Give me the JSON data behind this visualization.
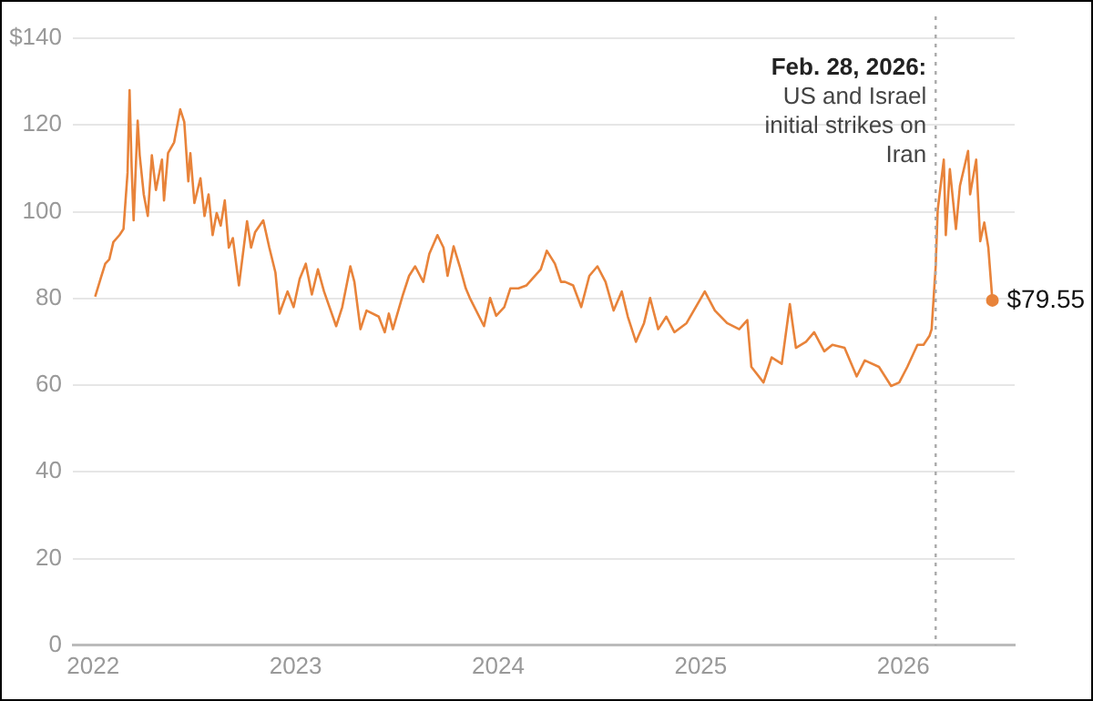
{
  "chart_data": {
    "type": "line",
    "x": [
      2022.01,
      2022.04,
      2022.06,
      2022.08,
      2022.1,
      2022.13,
      2022.15,
      2022.17,
      2022.18,
      2022.19,
      2022.2,
      2022.22,
      2022.23,
      2022.25,
      2022.27,
      2022.29,
      2022.31,
      2022.34,
      2022.35,
      2022.37,
      2022.4,
      2022.43,
      2022.45,
      2022.47,
      2022.48,
      2022.5,
      2022.53,
      2022.55,
      2022.57,
      2022.59,
      2022.61,
      2022.63,
      2022.65,
      2022.67,
      2022.69,
      2022.72,
      2022.76,
      2022.78,
      2022.8,
      2022.84,
      2022.87,
      2022.9,
      2022.92,
      2022.96,
      2022.99,
      2023.02,
      2023.05,
      2023.08,
      2023.11,
      2023.14,
      2023.2,
      2023.23,
      2023.27,
      2023.29,
      2023.32,
      2023.35,
      2023.41,
      2023.44,
      2023.46,
      2023.48,
      2023.53,
      2023.56,
      2023.59,
      2023.63,
      2023.66,
      2023.7,
      2023.73,
      2023.75,
      2023.78,
      2023.81,
      2023.84,
      2023.86,
      2023.93,
      2023.96,
      2023.99,
      2024.03,
      2024.06,
      2024.1,
      2024.14,
      2024.21,
      2024.24,
      2024.28,
      2024.31,
      2024.33,
      2024.37,
      2024.41,
      2024.45,
      2024.49,
      2024.53,
      2024.57,
      2024.61,
      2024.64,
      2024.68,
      2024.72,
      2024.75,
      2024.79,
      2024.83,
      2024.87,
      2024.93,
      2025.02,
      2025.07,
      2025.13,
      2025.19,
      2025.23,
      2025.25,
      2025.31,
      2025.35,
      2025.4,
      2025.44,
      2025.47,
      2025.52,
      2025.56,
      2025.61,
      2025.65,
      2025.71,
      2025.77,
      2025.81,
      2025.88,
      2025.94,
      2025.98,
      2026.02,
      2026.07,
      2026.1,
      2026.13,
      2026.14,
      2026.16,
      2026.17,
      2026.2,
      2026.21,
      2026.23,
      2026.26,
      2026.28,
      2026.32,
      2026.33,
      2026.36,
      2026.38,
      2026.4,
      2026.42,
      2026.44
    ],
    "series": [
      {
        "color": "#e8833a",
        "values": [
          80.4,
          85,
          88,
          89,
          93,
          94.6,
          96,
          109,
          128,
          110.5,
          98,
          121,
          113,
          104,
          99,
          113,
          105,
          112,
          102.6,
          113.5,
          116,
          123.6,
          120.7,
          107,
          113.5,
          102,
          107.7,
          99,
          104,
          94.6,
          99.7,
          96.8,
          102.6,
          91.7,
          93.9,
          83,
          97.8,
          91.7,
          95.3,
          98,
          91.7,
          86,
          76.5,
          81.6,
          78,
          84.5,
          88,
          80.9,
          86.7,
          81.6,
          73.6,
          78,
          87.4,
          83.8,
          72.9,
          77.2,
          75.8,
          72.2,
          76.5,
          72.9,
          80.9,
          85.2,
          87.4,
          83.8,
          90.3,
          94.6,
          91.7,
          85.2,
          92,
          87.4,
          82.3,
          80.1,
          73.6,
          80.1,
          76,
          78,
          82.3,
          82.3,
          83,
          86.7,
          91,
          88,
          83.8,
          83.8,
          83,
          78,
          85.2,
          87.4,
          83.8,
          77.2,
          81.6,
          75.8,
          70,
          74.3,
          80.1,
          72.9,
          75.8,
          72.2,
          74.3,
          81.6,
          77.2,
          74.3,
          72.9,
          75,
          64.2,
          60.6,
          66.4,
          64.9,
          78.7,
          68.6,
          70,
          72.2,
          67.8,
          69.3,
          68.6,
          62,
          65.7,
          64.2,
          59.8,
          60.6,
          64.2,
          69.3,
          69.3,
          71.4,
          72.9,
          87.4,
          100.4,
          112,
          94.6,
          109.8,
          96,
          106,
          114,
          104,
          112,
          93.2,
          97.5,
          91.7,
          79.55
        ]
      }
    ],
    "xlim": [
      2021.9,
      2026.55
    ],
    "xticks": [
      2022,
      2023,
      2024,
      2025,
      2026
    ],
    "ylim": [
      0,
      140
    ],
    "yticks": [
      0,
      20,
      40,
      60,
      80,
      100,
      120,
      {
        "value": 140,
        "label": "$140"
      }
    ],
    "grid": "y",
    "legend": false,
    "ref_lines": [
      {
        "axis": "x",
        "value": 2026.16,
        "label": "Feb. 28, 2026: US and Israel initial strikes on Iran",
        "color": "#aaaaaa",
        "line_style": "dotted"
      }
    ],
    "annotations": [
      {
        "text": "$79.55",
        "x": 2026.44,
        "y": 79.55
      }
    ]
  }
}
